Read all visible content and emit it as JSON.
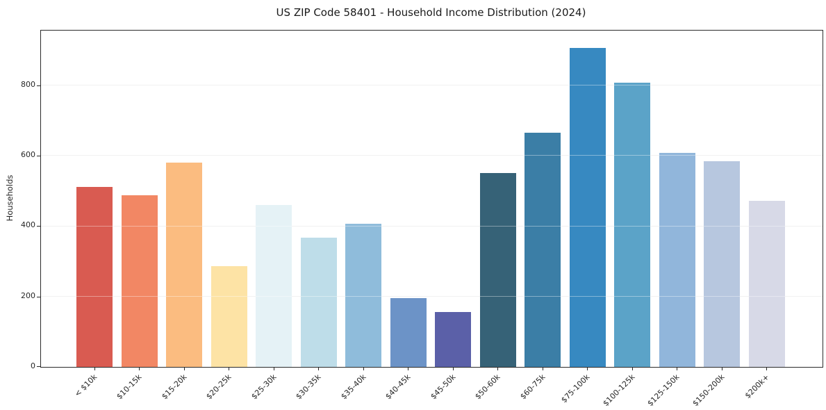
{
  "chart_data": {
    "type": "bar",
    "title": "US ZIP Code 58401 - Household Income Distribution (2024)",
    "xlabel": "",
    "ylabel": "Households",
    "categories": [
      "< $10k",
      "$10-15k",
      "$15-20k",
      "$20-25k",
      "$25-30k",
      "$30-35k",
      "$35-40k",
      "$40-45k",
      "$45-50k",
      "$50-60k",
      "$60-75k",
      "$75-100k",
      "$100-125k",
      "$125-150k",
      "$150-200k",
      "$200k+"
    ],
    "values": [
      511,
      487,
      581,
      287,
      459,
      367,
      407,
      196,
      155,
      550,
      664,
      905,
      808,
      608,
      584,
      472
    ],
    "bar_colors": [
      "#d95b51",
      "#f28764",
      "#fbbc80",
      "#fde3a5",
      "#e5f2f6",
      "#bedde9",
      "#8fbcdb",
      "#6c93c7",
      "#5b60a8",
      "#366277",
      "#3b7ea6",
      "#3789c1",
      "#5ba3c8",
      "#91b6db",
      "#b7c7df",
      "#d7d9e7"
    ],
    "yticks": [
      0,
      200,
      400,
      600,
      800
    ],
    "ylim": [
      0,
      955
    ],
    "grid": "horizontal-only",
    "legend": "none",
    "x_tick_rotation_deg": 45
  },
  "colors": {
    "background": "#ffffff",
    "spine": "#2a2a2a",
    "gridline": "#e9e9e9",
    "tick_text": "#262626"
  }
}
